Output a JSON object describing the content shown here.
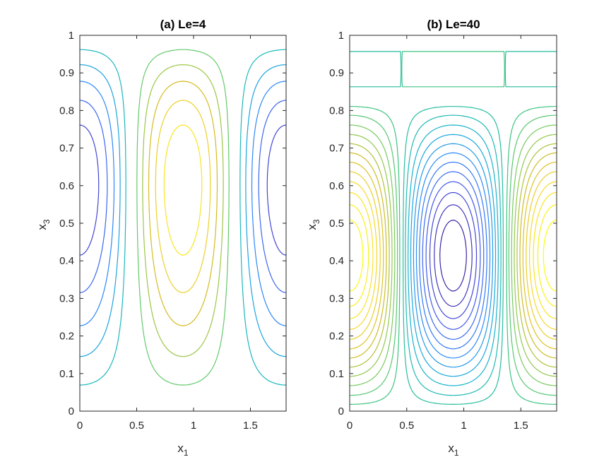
{
  "figure": {
    "background": "#ffffff",
    "axis_color": "#262626"
  },
  "chart_data": [
    {
      "type": "contour",
      "title": "(a) Le=4",
      "xlabel": "x",
      "xlabel_sub": "1",
      "ylabel": "x",
      "ylabel_sub": "3",
      "xlim": [
        0,
        1.8138
      ],
      "ylim": [
        0,
        1
      ],
      "xticks": [
        0,
        0.5,
        1,
        1.5
      ],
      "xtick_labels": [
        "0",
        "0.5",
        "1",
        "1.5"
      ],
      "yticks": [
        0,
        0.1,
        0.2,
        0.3,
        0.4,
        0.5,
        0.6,
        0.7,
        0.8,
        0.9,
        1
      ],
      "ytick_labels": [
        "0",
        "0.1",
        "0.2",
        "0.3",
        "0.4",
        "0.5",
        "0.6",
        "0.7",
        "0.8",
        "0.9",
        "1"
      ],
      "grid": false,
      "colormap": [
        "#3e26a8",
        "#4557e9",
        "#2e87f7",
        "#15b1d4",
        "#2ac28e",
        "#81cc59",
        "#d5bb21",
        "#f8da2e",
        "#f9fb0e"
      ],
      "field": {
        "kind": "roll",
        "period_x": 1.8138,
        "center_x": 0.9069,
        "z_peak": 0.66,
        "amplitude_sign": 1,
        "vertical_skew": 0.32
      },
      "levels": [
        -0.9,
        -0.75,
        -0.6,
        -0.45,
        -0.3,
        -0.15,
        0.15,
        0.3,
        0.45,
        0.6,
        0.75,
        0.9
      ]
    },
    {
      "type": "contour",
      "title": "(b) Le=40",
      "xlabel": "x",
      "xlabel_sub": "1",
      "ylabel": "x",
      "ylabel_sub": "3",
      "xlim": [
        0,
        1.8138
      ],
      "ylim": [
        0,
        1
      ],
      "xticks": [
        0,
        0.5,
        1,
        1.5
      ],
      "xtick_labels": [
        "0",
        "0.5",
        "1",
        "1.5"
      ],
      "yticks": [
        0,
        0.1,
        0.2,
        0.3,
        0.4,
        0.5,
        0.6,
        0.7,
        0.8,
        0.9,
        1
      ],
      "ytick_labels": [
        "0",
        "0.1",
        "0.2",
        "0.3",
        "0.4",
        "0.5",
        "0.6",
        "0.7",
        "0.8",
        "0.9",
        "1"
      ],
      "grid": false,
      "colormap": [
        "#3e26a8",
        "#4557e9",
        "#2e87f7",
        "#15b1d4",
        "#2ac28e",
        "#81cc59",
        "#d5bb21",
        "#f8da2e",
        "#f9fb0e"
      ],
      "field": {
        "kind": "roll_with_upper_cells",
        "period_x": 1.8138,
        "center_x": 0.9069,
        "z_peak": 0.41,
        "amplitude_sign": -1,
        "upper_cell_center_z": 0.91
      },
      "levels": [
        -0.92,
        -0.84,
        -0.76,
        -0.68,
        -0.6,
        -0.52,
        -0.44,
        -0.36,
        -0.28,
        -0.2,
        -0.12,
        -0.05,
        0.05,
        0.12,
        0.2,
        0.28,
        0.36,
        0.44,
        0.52,
        0.6,
        0.68,
        0.76,
        0.84,
        0.92
      ]
    }
  ]
}
